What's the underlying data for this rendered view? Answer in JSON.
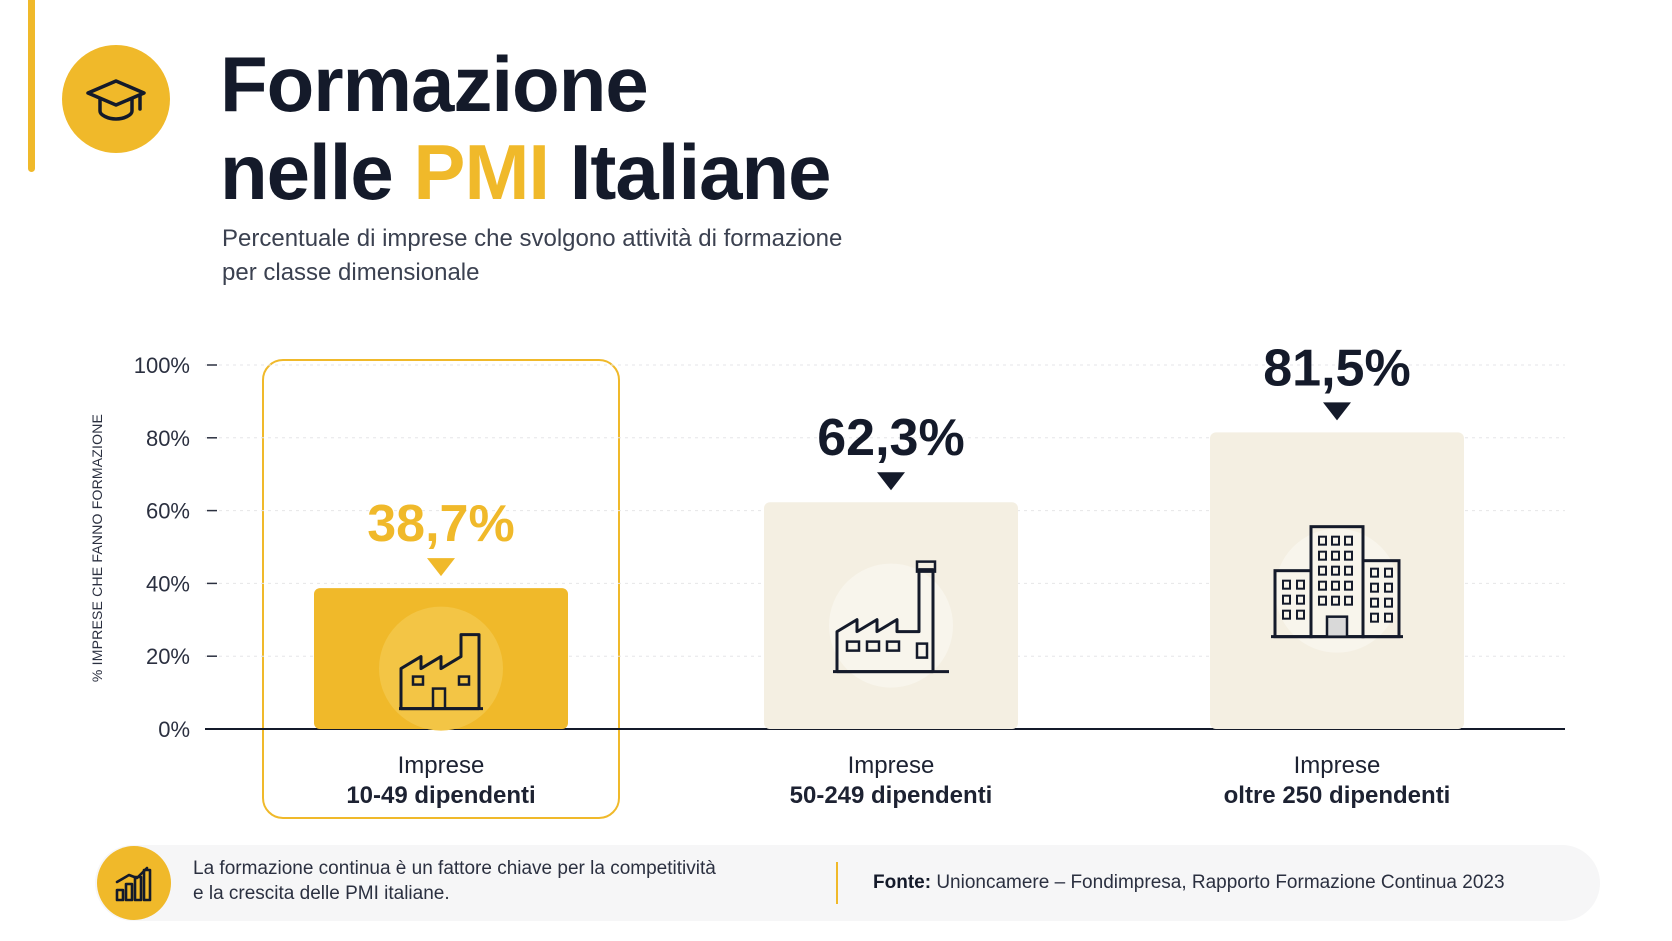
{
  "header": {
    "title_line1": "Formazione",
    "title_line2_pre": "nelle ",
    "title_line2_highlight": "PMI",
    "title_line2_post": " Italiane",
    "subtitle_line1": "Percentuale di imprese che svolgono attività di formazione",
    "subtitle_line2": "per classe dimensionale",
    "icon": "graduation-cap-icon"
  },
  "colors": {
    "accent": "#f0b92a",
    "dark": "#141a2a",
    "bar_muted": "#f4efe2"
  },
  "chart_data": {
    "type": "bar",
    "ylabel": "% IMPRESE CHE FANNO FORMAZIONE",
    "ylim": [
      0,
      100
    ],
    "y_ticks": [
      "0%",
      "20%",
      "40%",
      "60%",
      "80%",
      "100%"
    ],
    "grid": true,
    "categories": [
      {
        "line1": "Imprese",
        "line2": "10-49 dipendenti",
        "icon": "small-factory-icon",
        "highlighted": true
      },
      {
        "line1": "Imprese",
        "line2": "50-249 dipendenti",
        "icon": "factory-chimney-icon",
        "highlighted": false
      },
      {
        "line1": "Imprese",
        "line2": "oltre 250 dipendenti",
        "icon": "office-buildings-icon",
        "highlighted": false
      }
    ],
    "values": [
      38.7,
      62.3,
      81.5
    ],
    "value_labels": [
      "38,7%",
      "62,3%",
      "81,5%"
    ]
  },
  "footer": {
    "icon": "bar-chart-icon",
    "note_line1": "La formazione continua è un fattore chiave per la competitività",
    "note_line2": "e la crescita delle PMI italiane.",
    "source_label": "Fonte:",
    "source_text": " Unioncamere – Fondimpresa, Rapporto Formazione Continua 2023"
  }
}
